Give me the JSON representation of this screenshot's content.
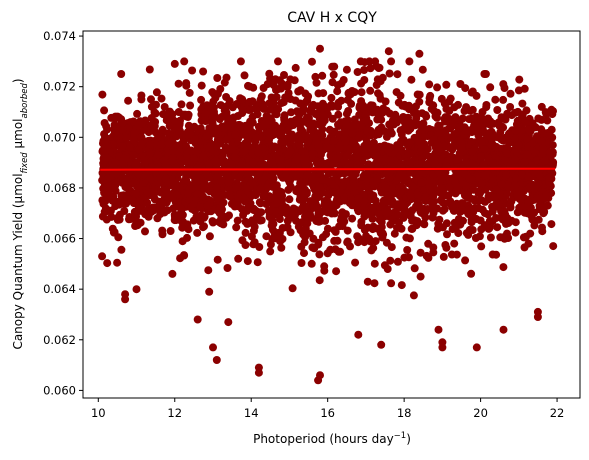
{
  "chart_data": {
    "type": "scatter",
    "title": "CAV H x CQY",
    "xlabel": {
      "base": "Photoperiod (hours day",
      "sup": "−1",
      "close": ")"
    },
    "ylabel": {
      "base": "Canopy Quantum Yield (μmol",
      "sub1": "fixed",
      "mid": " μmol",
      "sub2": "aborbed",
      "close": ")"
    },
    "xlim": [
      9.6,
      22.6
    ],
    "ylim": [
      0.0597,
      0.0742
    ],
    "xticks": [
      10,
      12,
      14,
      16,
      18,
      20,
      22
    ],
    "yticks": [
      0.06,
      0.062,
      0.064,
      0.066,
      0.068,
      0.07,
      0.072,
      0.074
    ],
    "xtick_labels": [
      "10",
      "12",
      "14",
      "16",
      "18",
      "20",
      "22"
    ],
    "ytick_labels": [
      "0.060",
      "0.062",
      "0.064",
      "0.066",
      "0.068",
      "0.070",
      "0.072",
      "0.074"
    ],
    "point_color": "#8b0000",
    "fit_color": "#ff0000",
    "grid": false,
    "point_cloud": {
      "x_range": [
        10.1,
        21.9
      ],
      "y_center": 0.0688,
      "y_std": 0.0016,
      "count": 4000
    },
    "outlier_points": [
      [
        15.8,
        0.0735
      ],
      [
        17.6,
        0.0734
      ],
      [
        18.4,
        0.0733
      ],
      [
        14.7,
        0.073
      ],
      [
        12.0,
        0.0729
      ],
      [
        10.6,
        0.0725
      ],
      [
        20.1,
        0.0725
      ],
      [
        21.6,
        0.0712
      ],
      [
        15.8,
        0.0606
      ],
      [
        15.75,
        0.0604
      ],
      [
        14.2,
        0.0609
      ],
      [
        14.2,
        0.0607
      ],
      [
        13.0,
        0.0617
      ],
      [
        13.1,
        0.0612
      ],
      [
        19.0,
        0.0617
      ],
      [
        19.0,
        0.0619
      ],
      [
        19.9,
        0.0617
      ],
      [
        21.5,
        0.0629
      ],
      [
        21.5,
        0.0631
      ],
      [
        12.6,
        0.0628
      ],
      [
        10.7,
        0.0636
      ],
      [
        10.7,
        0.0638
      ],
      [
        21.9,
        0.0657
      ],
      [
        10.1,
        0.0653
      ],
      [
        21.8,
        0.0682
      ],
      [
        21.8,
        0.0684
      ],
      [
        17.4,
        0.0618
      ],
      [
        16.8,
        0.0622
      ],
      [
        11.0,
        0.064
      ],
      [
        20.6,
        0.0624
      ],
      [
        13.4,
        0.0627
      ],
      [
        18.9,
        0.0624
      ]
    ],
    "fit_line": {
      "x": [
        10.05,
        21.95
      ],
      "y": [
        0.06872,
        0.06876
      ]
    }
  }
}
